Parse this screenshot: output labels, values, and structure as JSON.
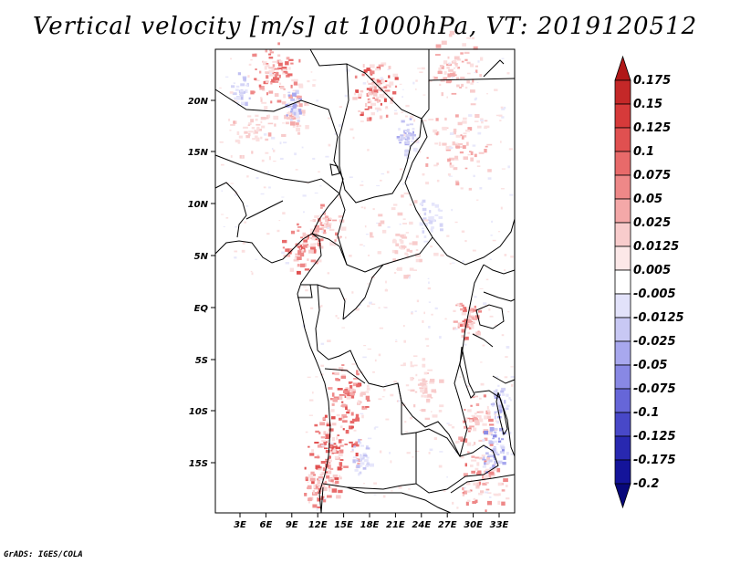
{
  "title": "Vertical velocity [m/s] at 1000hPa, VT: 2019120512",
  "footer": "GrADS: IGES/COLA",
  "map": {
    "lat_labels": [
      "20N",
      "15N",
      "10N",
      "5N",
      "EQ",
      "5S",
      "10S",
      "15S"
    ],
    "lon_labels": [
      "3E",
      "6E",
      "9E",
      "12E",
      "15E",
      "18E",
      "21E",
      "24E",
      "27E",
      "30E",
      "33E"
    ]
  },
  "colorbar": {
    "labels": [
      "0.175",
      "0.15",
      "0.125",
      "0.1",
      "0.075",
      "0.05",
      "0.025",
      "0.0125",
      "0.005",
      "-0.005",
      "-0.0125",
      "-0.025",
      "-0.05",
      "-0.075",
      "-0.1",
      "-0.125",
      "-0.175",
      "-0.2"
    ],
    "colors": [
      "#b01818",
      "#c42828",
      "#d63a3a",
      "#e05050",
      "#e86a6a",
      "#ee8888",
      "#f4a8a8",
      "#f8cccc",
      "#fce8e8",
      "#ffffff",
      "#e2e2fa",
      "#c8c8f4",
      "#a8a8ee",
      "#8888e4",
      "#6666d8",
      "#4848c8",
      "#2828b0",
      "#14149a",
      "#08087a"
    ]
  }
}
